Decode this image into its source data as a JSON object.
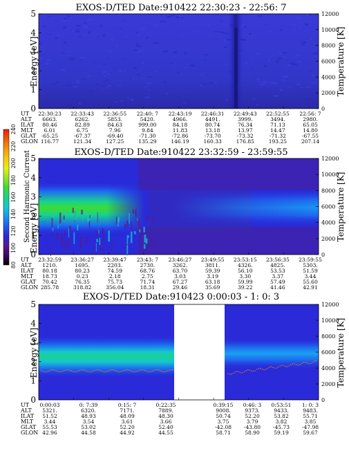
{
  "figure": {
    "colorbar": {
      "label": "Second Harmonic Current",
      "ticks": [
        "80",
        "100",
        "120",
        "140",
        "160",
        "180",
        "200",
        "220",
        "240"
      ],
      "colors": [
        "#000000",
        "#3d0a5e",
        "#5a1a8c",
        "#2a2ad8",
        "#1e5cf0",
        "#1a96f0",
        "#16c8d0",
        "#19d28c",
        "#3cdc32",
        "#96e628",
        "#e6f014",
        "#f5c80a",
        "#f5960a",
        "#f05a0a",
        "#e61e0a"
      ]
    },
    "row_labels": [
      "UT",
      "ALT",
      "ILAT",
      "MLT",
      "GLAT",
      "GLON"
    ]
  },
  "chart_data": [
    {
      "type": "heatmap",
      "title": "EXOS-D/TED   Date:910422  22:30:23 - 22:56: 7",
      "ylabel": "Energy [eV]",
      "y2label": "Temperature [K]",
      "ylim": [
        0,
        5
      ],
      "y2lim": [
        0,
        12000
      ],
      "yticks": [
        "0",
        "1",
        "2",
        "3",
        "4",
        "5"
      ],
      "y2ticks": [
        "0",
        "2000",
        "4000",
        "6000",
        "8000",
        "10000",
        "12000"
      ],
      "table": [
        [
          "22:30:23",
          "22:33:43",
          "22:36:55",
          "22:40: 7",
          "22:43:19",
          "22:46:31",
          "22:49:43",
          "22:52:55",
          "22:56: 7"
        ],
        [
          "6663.",
          "6262.",
          "5853.",
          "5420.",
          "4966.",
          "4491.",
          "3999.",
          "3494.",
          "2980."
        ],
        [
          "80.46",
          "82.89",
          "84.63",
          "999.00",
          "84.18",
          "80.74",
          "76.34",
          "71.13",
          "65.05"
        ],
        [
          "6.01",
          "6.75",
          "7.96",
          "9.84",
          "11.83",
          "13.18",
          "13.97",
          "14.47",
          "14.80"
        ],
        [
          "-65.25",
          "-67.37",
          "-69.40",
          "-71.30",
          "-72.86",
          "-73.70",
          "-73.32",
          "-71.32",
          "-67.55"
        ],
        [
          "116.77",
          "121.34",
          "127.25",
          "135.29",
          "146.19",
          "160.33",
          "176.85",
          "193.25",
          "207.14"
        ]
      ]
    },
    {
      "type": "heatmap",
      "title": "EXOS-D/TED   Date:910422  23:32:59 - 23:59:55",
      "ylabel": "Energy [eV]",
      "y2label": "Temperature [K]",
      "ylim": [
        0,
        5
      ],
      "y2lim": [
        0,
        12000
      ],
      "yticks": [
        "0",
        "1",
        "2",
        "3",
        "4",
        "5"
      ],
      "y2ticks": [
        "0",
        "2000",
        "4000",
        "6000",
        "8000",
        "10000",
        "12000"
      ],
      "table": [
        [
          "23:32:59",
          "23:36:27",
          "23:39:47",
          "23:43: 7",
          "23:46:27",
          "23:49:55",
          "23:53:15",
          "23:56:35",
          "23:59:55"
        ],
        [
          "1210.",
          "1695.",
          "2203.",
          "2730.",
          "3262.",
          "3811.",
          "4326.",
          "4825.",
          "5303."
        ],
        [
          "80.18",
          "80.23",
          "74.59",
          "68.76",
          "63.70",
          "59.39",
          "56.10",
          "53.53",
          "51.59"
        ],
        [
          "18.73",
          "0.23",
          "2.18",
          "2.75",
          "3.03",
          "3.19",
          "3.30",
          "3.37",
          "3.44"
        ],
        [
          "70.42",
          "76.35",
          "75.73",
          "71.74",
          "67.27",
          "63.18",
          "59.99",
          "57.49",
          "55.60"
        ],
        [
          "285.78",
          "318.82",
          "356.04",
          "18.31",
          "29.46",
          "35.69",
          "39.22",
          "41.46",
          "42.91"
        ]
      ]
    },
    {
      "type": "heatmap",
      "title": "EXOS-D/TED   Date:910423  0:00:03 - 1: 0: 3",
      "ylabel": "Energy [eV]",
      "y2label": "Temperature [K]",
      "ylim": [
        0,
        5
      ],
      "y2lim": [
        0,
        12000
      ],
      "yticks": [
        "0",
        "1",
        "2",
        "3",
        "4",
        "5"
      ],
      "y2ticks": [
        "0",
        "2000",
        "4000",
        "6000",
        "8000",
        "10000",
        "12000"
      ],
      "table_left": [
        [
          "0:00:03",
          "0: 7:39",
          "0:15: 7",
          "0:22:35"
        ],
        [
          "5321.",
          "6320.",
          "7171.",
          "7889."
        ],
        [
          "51.52",
          "48.93",
          "48.09",
          "48.30"
        ],
        [
          "3.44",
          "3.54",
          "3.61",
          "3.66"
        ],
        [
          "55.53",
          "53.02",
          "52.20",
          "52.40"
        ],
        [
          "42.96",
          "44.58",
          "44.92",
          "44.55"
        ]
      ],
      "table_right": [
        [
          "0:39:15",
          "0:46: 3",
          "0:53:51",
          "1: 0: 3"
        ],
        [
          "9008.",
          "9373.",
          "9433.",
          "9483."
        ],
        [
          "50.74",
          "52.20",
          "53.82",
          "55.71"
        ],
        [
          "3.75",
          "3.79",
          "3.82",
          "3.85"
        ],
        [
          "-42.08",
          "-43.80",
          "-45.73",
          "-47.98"
        ],
        [
          "58.71",
          "58.90",
          "59.19",
          "59.67"
        ]
      ]
    }
  ]
}
